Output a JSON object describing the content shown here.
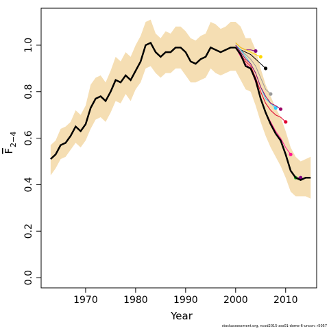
{
  "chart_data": {
    "type": "line",
    "xlabel": "Year",
    "ylabel": "F",
    "ylabel_subscript": "2−4",
    "footer": "stockassessment.org, ncod2015-ass01-dome-6-uncon: r5057",
    "xlim": [
      1961.1,
      2016.2
    ],
    "ylim": [
      -0.044,
      1.159
    ],
    "xticks": [
      1970,
      1980,
      1990,
      2000,
      2010
    ],
    "yticks": [
      {
        "value": 0,
        "label": "0.0"
      },
      0.2,
      0.4,
      0.6,
      0.8,
      {
        "value": 1,
        "label": "1.0"
      }
    ],
    "x": [
      1963,
      1964,
      1965,
      1966,
      1967,
      1968,
      1969,
      1970,
      1971,
      1972,
      1973,
      1974,
      1975,
      1976,
      1977,
      1978,
      1979,
      1980,
      1981,
      1982,
      1983,
      1984,
      1985,
      1986,
      1987,
      1988,
      1989,
      1990,
      1991,
      1992,
      1993,
      1994,
      1995,
      1996,
      1997,
      1998,
      1999,
      2000,
      2001,
      2002,
      2003,
      2004,
      2005,
      2006,
      2007,
      2008,
      2009,
      2010,
      2011,
      2012,
      2013,
      2014,
      2015
    ],
    "band_color": "#f5deb3",
    "upper": [
      0.57,
      0.59,
      0.64,
      0.65,
      0.67,
      0.72,
      0.7,
      0.74,
      0.83,
      0.86,
      0.87,
      0.84,
      0.89,
      0.95,
      0.93,
      0.97,
      0.95,
      1.0,
      1.04,
      1.1,
      1.11,
      1.05,
      1.03,
      1.06,
      1.05,
      1.08,
      1.08,
      1.06,
      1.03,
      1.02,
      1.04,
      1.05,
      1.1,
      1.09,
      1.07,
      1.08,
      1.1,
      1.1,
      1.08,
      1.03,
      1.03,
      0.98,
      0.9,
      0.83,
      0.78,
      0.73,
      0.69,
      0.63,
      0.56,
      0.52,
      0.5,
      0.51,
      0.52
    ],
    "lower": [
      0.44,
      0.47,
      0.51,
      0.52,
      0.55,
      0.58,
      0.56,
      0.59,
      0.64,
      0.68,
      0.69,
      0.67,
      0.71,
      0.76,
      0.75,
      0.79,
      0.76,
      0.81,
      0.84,
      0.9,
      0.91,
      0.88,
      0.86,
      0.88,
      0.88,
      0.9,
      0.9,
      0.87,
      0.84,
      0.84,
      0.85,
      0.86,
      0.9,
      0.88,
      0.87,
      0.88,
      0.89,
      0.89,
      0.85,
      0.81,
      0.8,
      0.74,
      0.67,
      0.61,
      0.56,
      0.52,
      0.48,
      0.43,
      0.37,
      0.35,
      0.35,
      0.35,
      0.34
    ],
    "values": [
      0.51,
      0.53,
      0.57,
      0.58,
      0.61,
      0.65,
      0.63,
      0.66,
      0.73,
      0.77,
      0.78,
      0.76,
      0.8,
      0.85,
      0.84,
      0.87,
      0.85,
      0.89,
      0.93,
      1.0,
      1.01,
      0.97,
      0.95,
      0.97,
      0.97,
      0.99,
      0.99,
      0.97,
      0.93,
      0.92,
      0.94,
      0.95,
      0.99,
      0.98,
      0.97,
      0.98,
      0.99,
      0.99,
      0.96,
      0.91,
      0.9,
      0.85,
      0.77,
      0.71,
      0.66,
      0.62,
      0.59,
      0.53,
      0.46,
      0.43,
      0.42,
      0.43,
      0.43
    ],
    "color": "#000000",
    "series": [
      {
        "color": "#800080",
        "x": [
          2000,
          2001,
          2002,
          2003,
          2004
        ],
        "values": [
          1.01,
          0.99,
          0.98,
          0.98,
          0.975
        ]
      },
      {
        "color": "#ffd700",
        "x": [
          2000,
          2001,
          2002,
          2003,
          2004,
          2005
        ],
        "values": [
          1.01,
          0.99,
          0.98,
          0.97,
          0.96,
          0.95
        ]
      },
      {
        "color": "#000000",
        "x": [
          2000,
          2001,
          2002,
          2003,
          2004,
          2005,
          2006
        ],
        "values": [
          1.0,
          0.98,
          0.97,
          0.96,
          0.94,
          0.92,
          0.9
        ]
      },
      {
        "color": "#999999",
        "x": [
          2000,
          2001,
          2002,
          2003,
          2004,
          2005,
          2006,
          2007
        ],
        "values": [
          1.0,
          0.98,
          0.96,
          0.94,
          0.91,
          0.86,
          0.81,
          0.79
        ]
      },
      {
        "color": "#33ccff",
        "x": [
          2000,
          2001,
          2002,
          2003,
          2004,
          2005,
          2006,
          2007,
          2008
        ],
        "values": [
          1.0,
          0.98,
          0.95,
          0.92,
          0.88,
          0.82,
          0.77,
          0.75,
          0.73
        ]
      },
      {
        "color": "#990066",
        "x": [
          2000,
          2001,
          2002,
          2003,
          2004,
          2005,
          2006,
          2007,
          2008,
          2009
        ],
        "values": [
          1.0,
          0.97,
          0.94,
          0.92,
          0.88,
          0.82,
          0.78,
          0.75,
          0.74,
          0.725
        ]
      },
      {
        "color": "#e00030",
        "x": [
          2000,
          2001,
          2002,
          2003,
          2004,
          2005,
          2006,
          2007,
          2008,
          2009,
          2010
        ],
        "values": [
          0.99,
          0.96,
          0.93,
          0.91,
          0.86,
          0.8,
          0.75,
          0.72,
          0.7,
          0.69,
          0.67
        ]
      },
      {
        "color": "#ff1493",
        "x": [
          2000,
          2001,
          2002,
          2003,
          2004,
          2005,
          2006,
          2007,
          2008,
          2009,
          2010,
          2011
        ],
        "values": [
          0.99,
          0.95,
          0.92,
          0.9,
          0.84,
          0.77,
          0.71,
          0.67,
          0.63,
          0.6,
          0.56,
          0.53
        ]
      },
      {
        "color": "#32cd32",
        "x": [
          2000,
          2001,
          2002,
          2003,
          2004,
          2005,
          2006,
          2007,
          2008,
          2009,
          2010,
          2011,
          2012
        ],
        "values": [
          0.99,
          0.96,
          0.91,
          0.9,
          0.85,
          0.77,
          0.71,
          0.66,
          0.62,
          0.59,
          0.53,
          0.46,
          0.43
        ]
      },
      {
        "color": "#800080",
        "x": [
          2000,
          2001,
          2002,
          2003,
          2004,
          2005,
          2006,
          2007,
          2008,
          2009,
          2010,
          2011,
          2012,
          2013
        ],
        "values": [
          0.99,
          0.96,
          0.91,
          0.9,
          0.85,
          0.77,
          0.71,
          0.66,
          0.62,
          0.59,
          0.53,
          0.46,
          0.43,
          0.43
        ]
      }
    ]
  }
}
